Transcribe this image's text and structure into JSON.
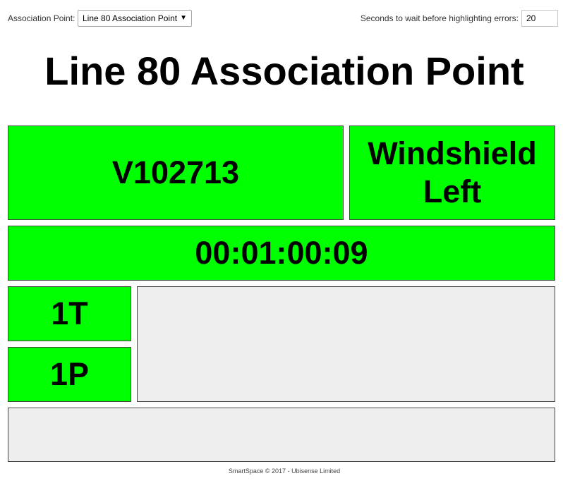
{
  "header": {
    "association_label": "Association Point:",
    "association_selected": "Line 80 Association Point",
    "wait_label": "Seconds to wait before highlighting errors:",
    "wait_value": "20"
  },
  "title": "Line 80 Association Point",
  "panels": {
    "vin": "V102713",
    "part_line1": "Windshield",
    "part_line2": "Left",
    "timer": "00:01:00:09",
    "tag_t": "1T",
    "tag_p": "1P",
    "message": "",
    "bottom": ""
  },
  "footer": "SmartSpace © 2017 - Ubisense Limited",
  "colors": {
    "status_ok": "#00ff00",
    "empty_panel": "#eeeeee"
  }
}
